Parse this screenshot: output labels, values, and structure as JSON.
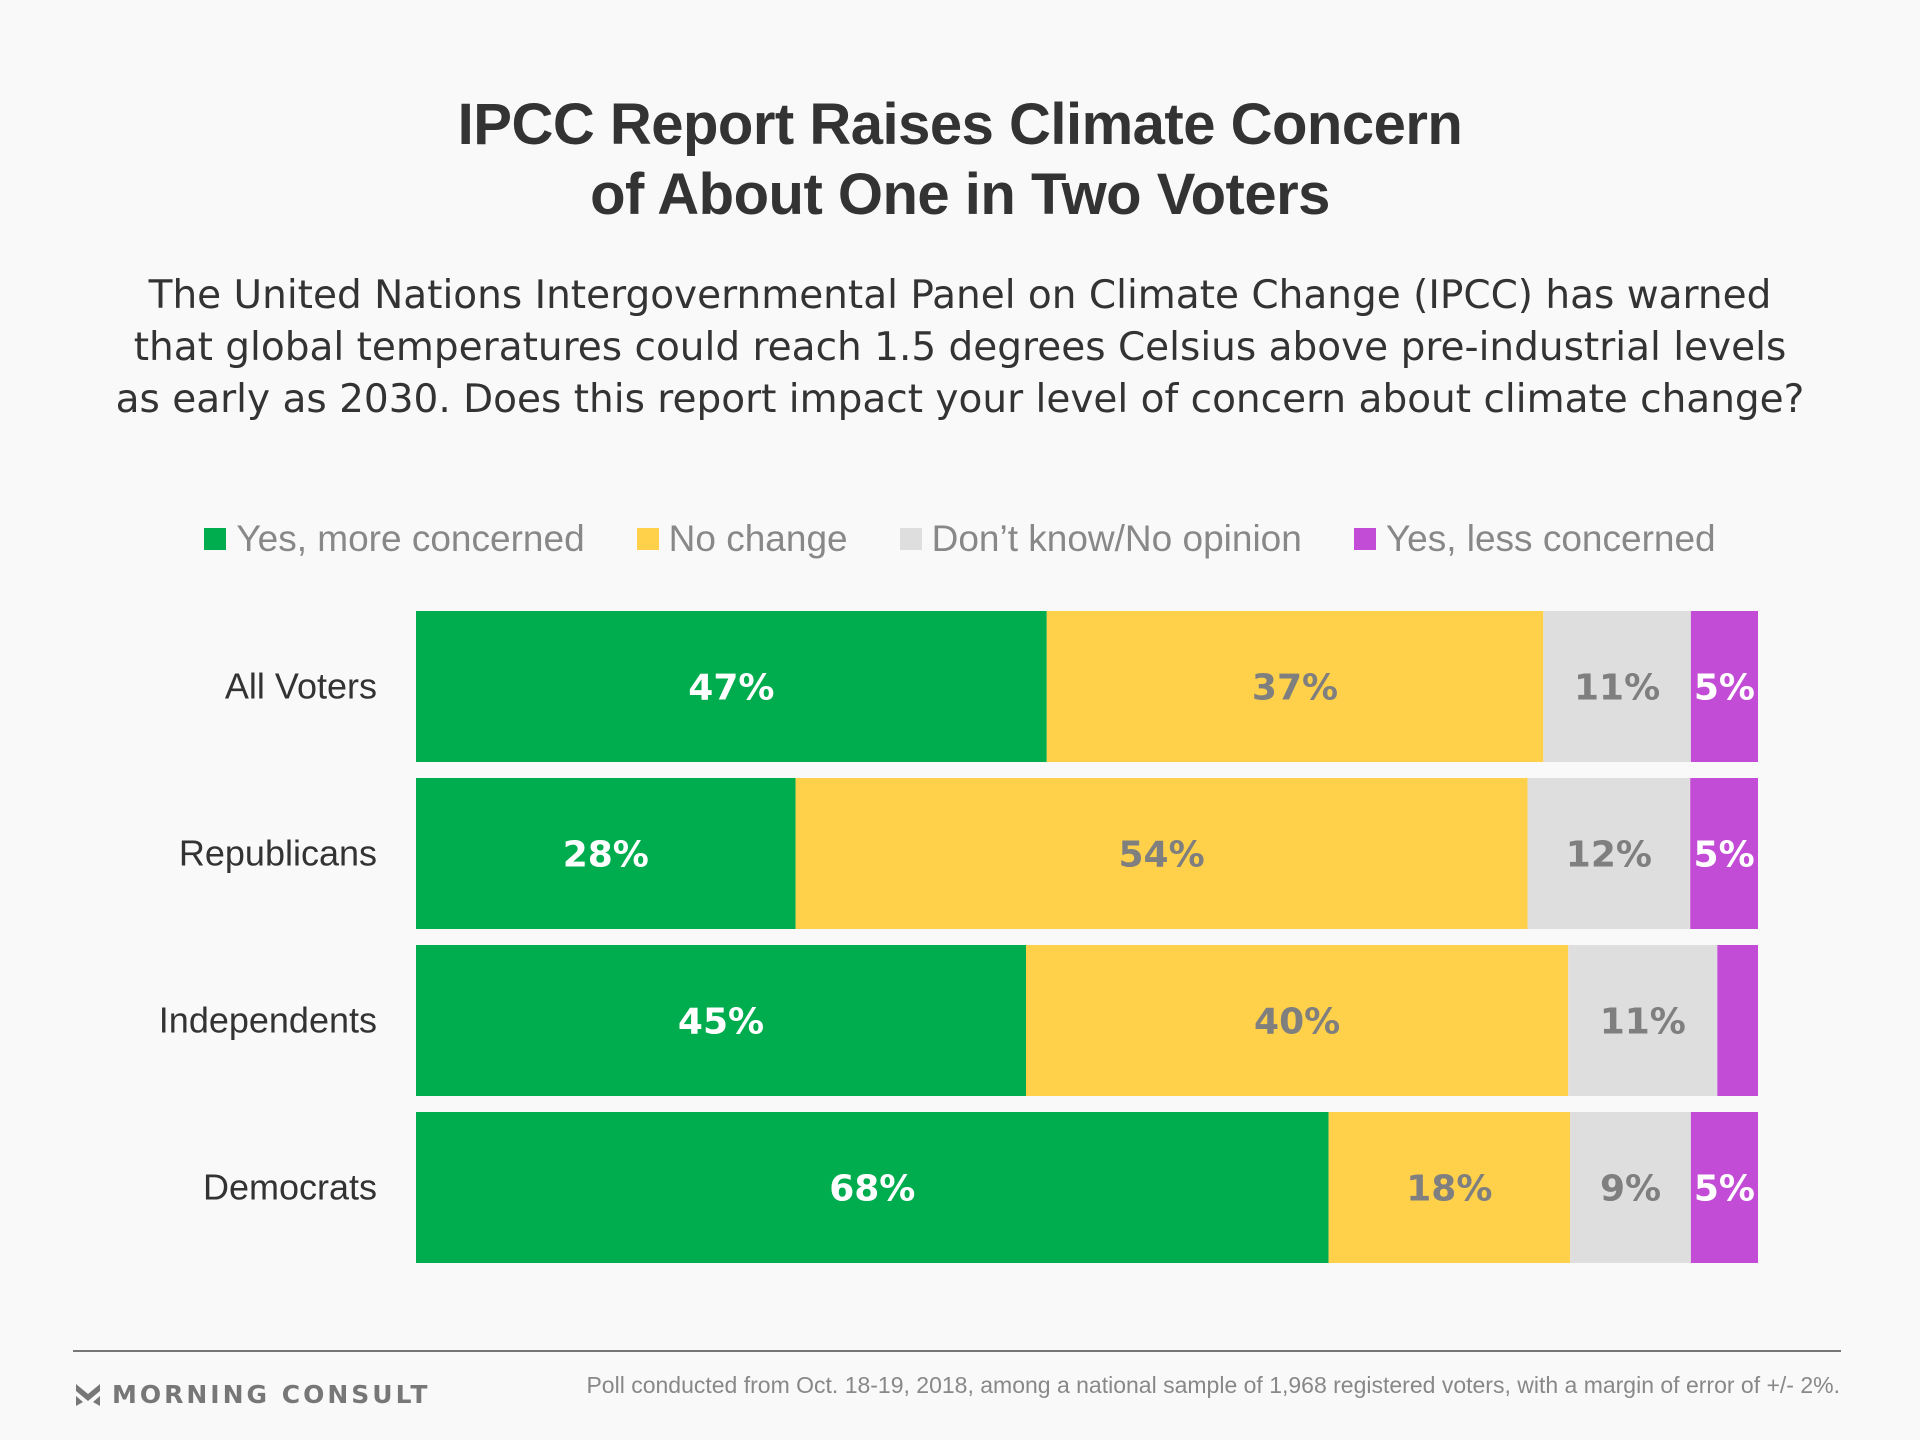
{
  "chart_data": {
    "type": "bar",
    "orientation": "horizontal-stacked",
    "title": "IPCC Report Raises Climate Concern of About One in Two Voters",
    "title_lines": [
      "IPCC Report Raises Climate Concern",
      "of About One in Two Voters"
    ],
    "subtitle_lines": [
      "The United Nations Intergovernmental Panel on Climate Change (IPCC) has warned",
      "that global temperatures could reach 1.5 degrees Celsius above pre-industrial levels",
      "as early as 2030. Does this report impact your level of concern about climate change?"
    ],
    "xlabel": "",
    "ylabel": "",
    "xlim": [
      0,
      100
    ],
    "grid": false,
    "legend_position": "top-center",
    "categories": [
      "All Voters",
      "Republicans",
      "Independents",
      "Democrats"
    ],
    "series": [
      {
        "name": "Yes, more concerned",
        "color": "#00ad4e",
        "label_color": "#ffffff",
        "values": [
          47,
          28,
          45,
          68
        ],
        "labels": [
          "47%",
          "28%",
          "45%",
          "68%"
        ]
      },
      {
        "name": "No change",
        "color": "#ffd04a",
        "label_color": "#7f7f7f",
        "values": [
          37,
          54,
          40,
          18
        ],
        "labels": [
          "37%",
          "54%",
          "40%",
          "18%"
        ]
      },
      {
        "name": "Don’t know/No opinion",
        "color": "#dedede",
        "label_color": "#7f7f7f",
        "values": [
          11,
          12,
          11,
          9
        ],
        "labels": [
          "11%",
          "12%",
          "11%",
          "9%"
        ]
      },
      {
        "name": "Yes, less concerned",
        "color": "#c34cd6",
        "label_color": "#ffffff",
        "values": [
          5,
          5,
          3,
          5
        ],
        "labels": [
          "5%",
          "5%",
          "",
          "5%"
        ]
      }
    ]
  },
  "footer": {
    "brand": "MORNING CONSULT",
    "note": "Poll conducted from Oct. 18-19, 2018, among a national sample of 1,968 registered voters, with a margin of error of +/- 2%."
  }
}
